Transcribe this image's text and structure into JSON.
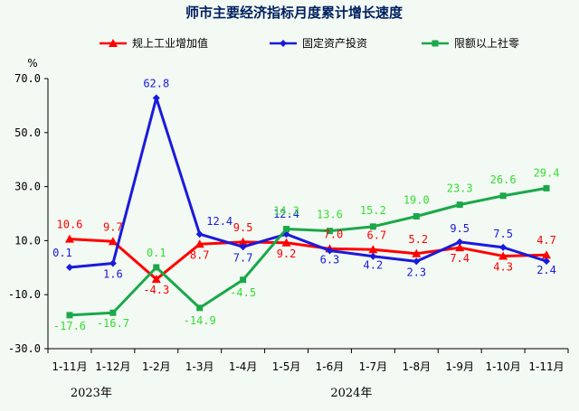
{
  "chart_data": {
    "type": "line",
    "title": "师市主要经济指标月度累计增长速度",
    "y_unit": "%",
    "ylim": [
      -30,
      70
    ],
    "yticks": [
      "70.0",
      "50.0",
      "30.0",
      "10.0",
      "-10.0",
      "-30.0"
    ],
    "ytick_values": [
      70,
      50,
      30,
      10,
      -10,
      -30
    ],
    "categories": [
      "1-11月",
      "1-12月",
      "1-2月",
      "1-3月",
      "1-4月",
      "1-5月",
      "1-6月",
      "1-7月",
      "1-8月",
      "1-9月",
      "1-10月",
      "1-11月"
    ],
    "year_labels": [
      {
        "text": "2023年",
        "at_category": 0.5
      },
      {
        "text": "2024年",
        "at_category": 6.5
      }
    ],
    "legend_position": "top",
    "grid": false,
    "series": [
      {
        "name": "规上工业增加值",
        "color": "#ff0000",
        "marker": "triangle",
        "values": [
          10.6,
          9.7,
          -4.3,
          8.7,
          9.5,
          9.2,
          7.0,
          6.7,
          5.2,
          7.4,
          4.3,
          4.7
        ],
        "labels": [
          "10.6",
          "9.7",
          "-4.3",
          "8.7",
          "9.5",
          "9.2",
          "7.0",
          "6.7",
          "5.2",
          "7.4",
          "4.3",
          "4.7"
        ]
      },
      {
        "name": "固定资产投资",
        "color": "#1a1adc",
        "marker": "diamond",
        "values": [
          0.1,
          1.6,
          62.8,
          12.4,
          7.7,
          12.4,
          6.3,
          4.2,
          2.3,
          9.5,
          7.5,
          2.4
        ],
        "labels": [
          "0.1",
          "1.6",
          "62.8",
          "12.4",
          "7.7",
          "12.4",
          "6.3",
          "4.2",
          "2.3",
          "9.5",
          "7.5",
          "2.4"
        ]
      },
      {
        "name": "限额以上社零",
        "color": "#1aa84a",
        "label_color": "#33dd33",
        "marker": "square",
        "values": [
          -17.6,
          -16.7,
          0.1,
          -14.9,
          -4.5,
          14.3,
          13.6,
          15.2,
          19.0,
          23.3,
          26.6,
          29.4
        ],
        "labels": [
          "-17.6",
          "-16.7",
          "0.1",
          "-14.9",
          "-4.5",
          "14.3",
          "13.6",
          "15.2",
          "19.0",
          "23.3",
          "26.6",
          "29.4"
        ]
      }
    ]
  }
}
